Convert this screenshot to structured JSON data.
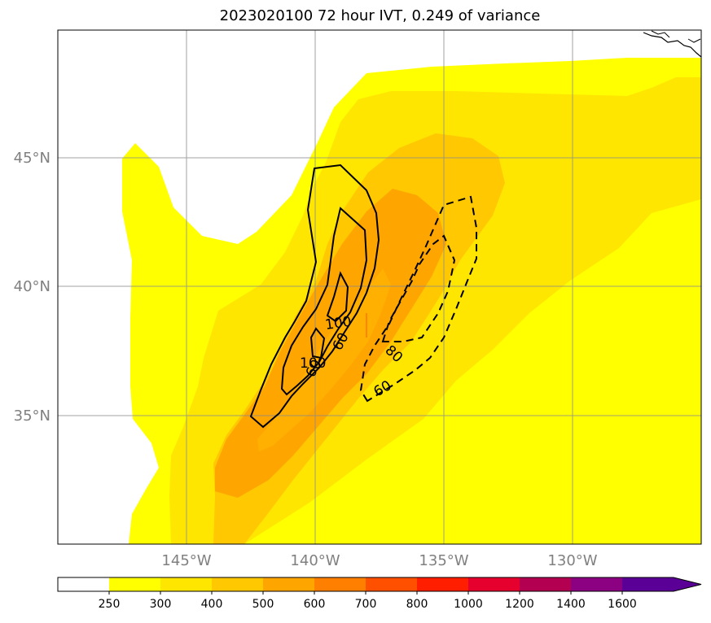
{
  "title": "2023020100 72 hour IVT, 0.249 of variance",
  "map": {
    "lon_ticks": [
      "145°W",
      "140°W",
      "135°W",
      "130°W"
    ],
    "lat_ticks": [
      "45°N",
      "40°N",
      "35°N"
    ]
  },
  "contour_labels": {
    "solid": [
      "100",
      "60",
      "100",
      "60"
    ],
    "dashed": [
      "80",
      "60"
    ]
  },
  "colorbar": {
    "ticks": [
      "250",
      "300",
      "400",
      "500",
      "600",
      "700",
      "800",
      "1000",
      "1200",
      "1400",
      "1600"
    ],
    "colors": [
      "#ffffff",
      "#ffff00",
      "#ffe600",
      "#ffc800",
      "#ffa500",
      "#ff7f00",
      "#ff5000",
      "#ff1e00",
      "#e6002d",
      "#b40050",
      "#8c0082",
      "#5a0096"
    ],
    "extend": "max"
  }
}
